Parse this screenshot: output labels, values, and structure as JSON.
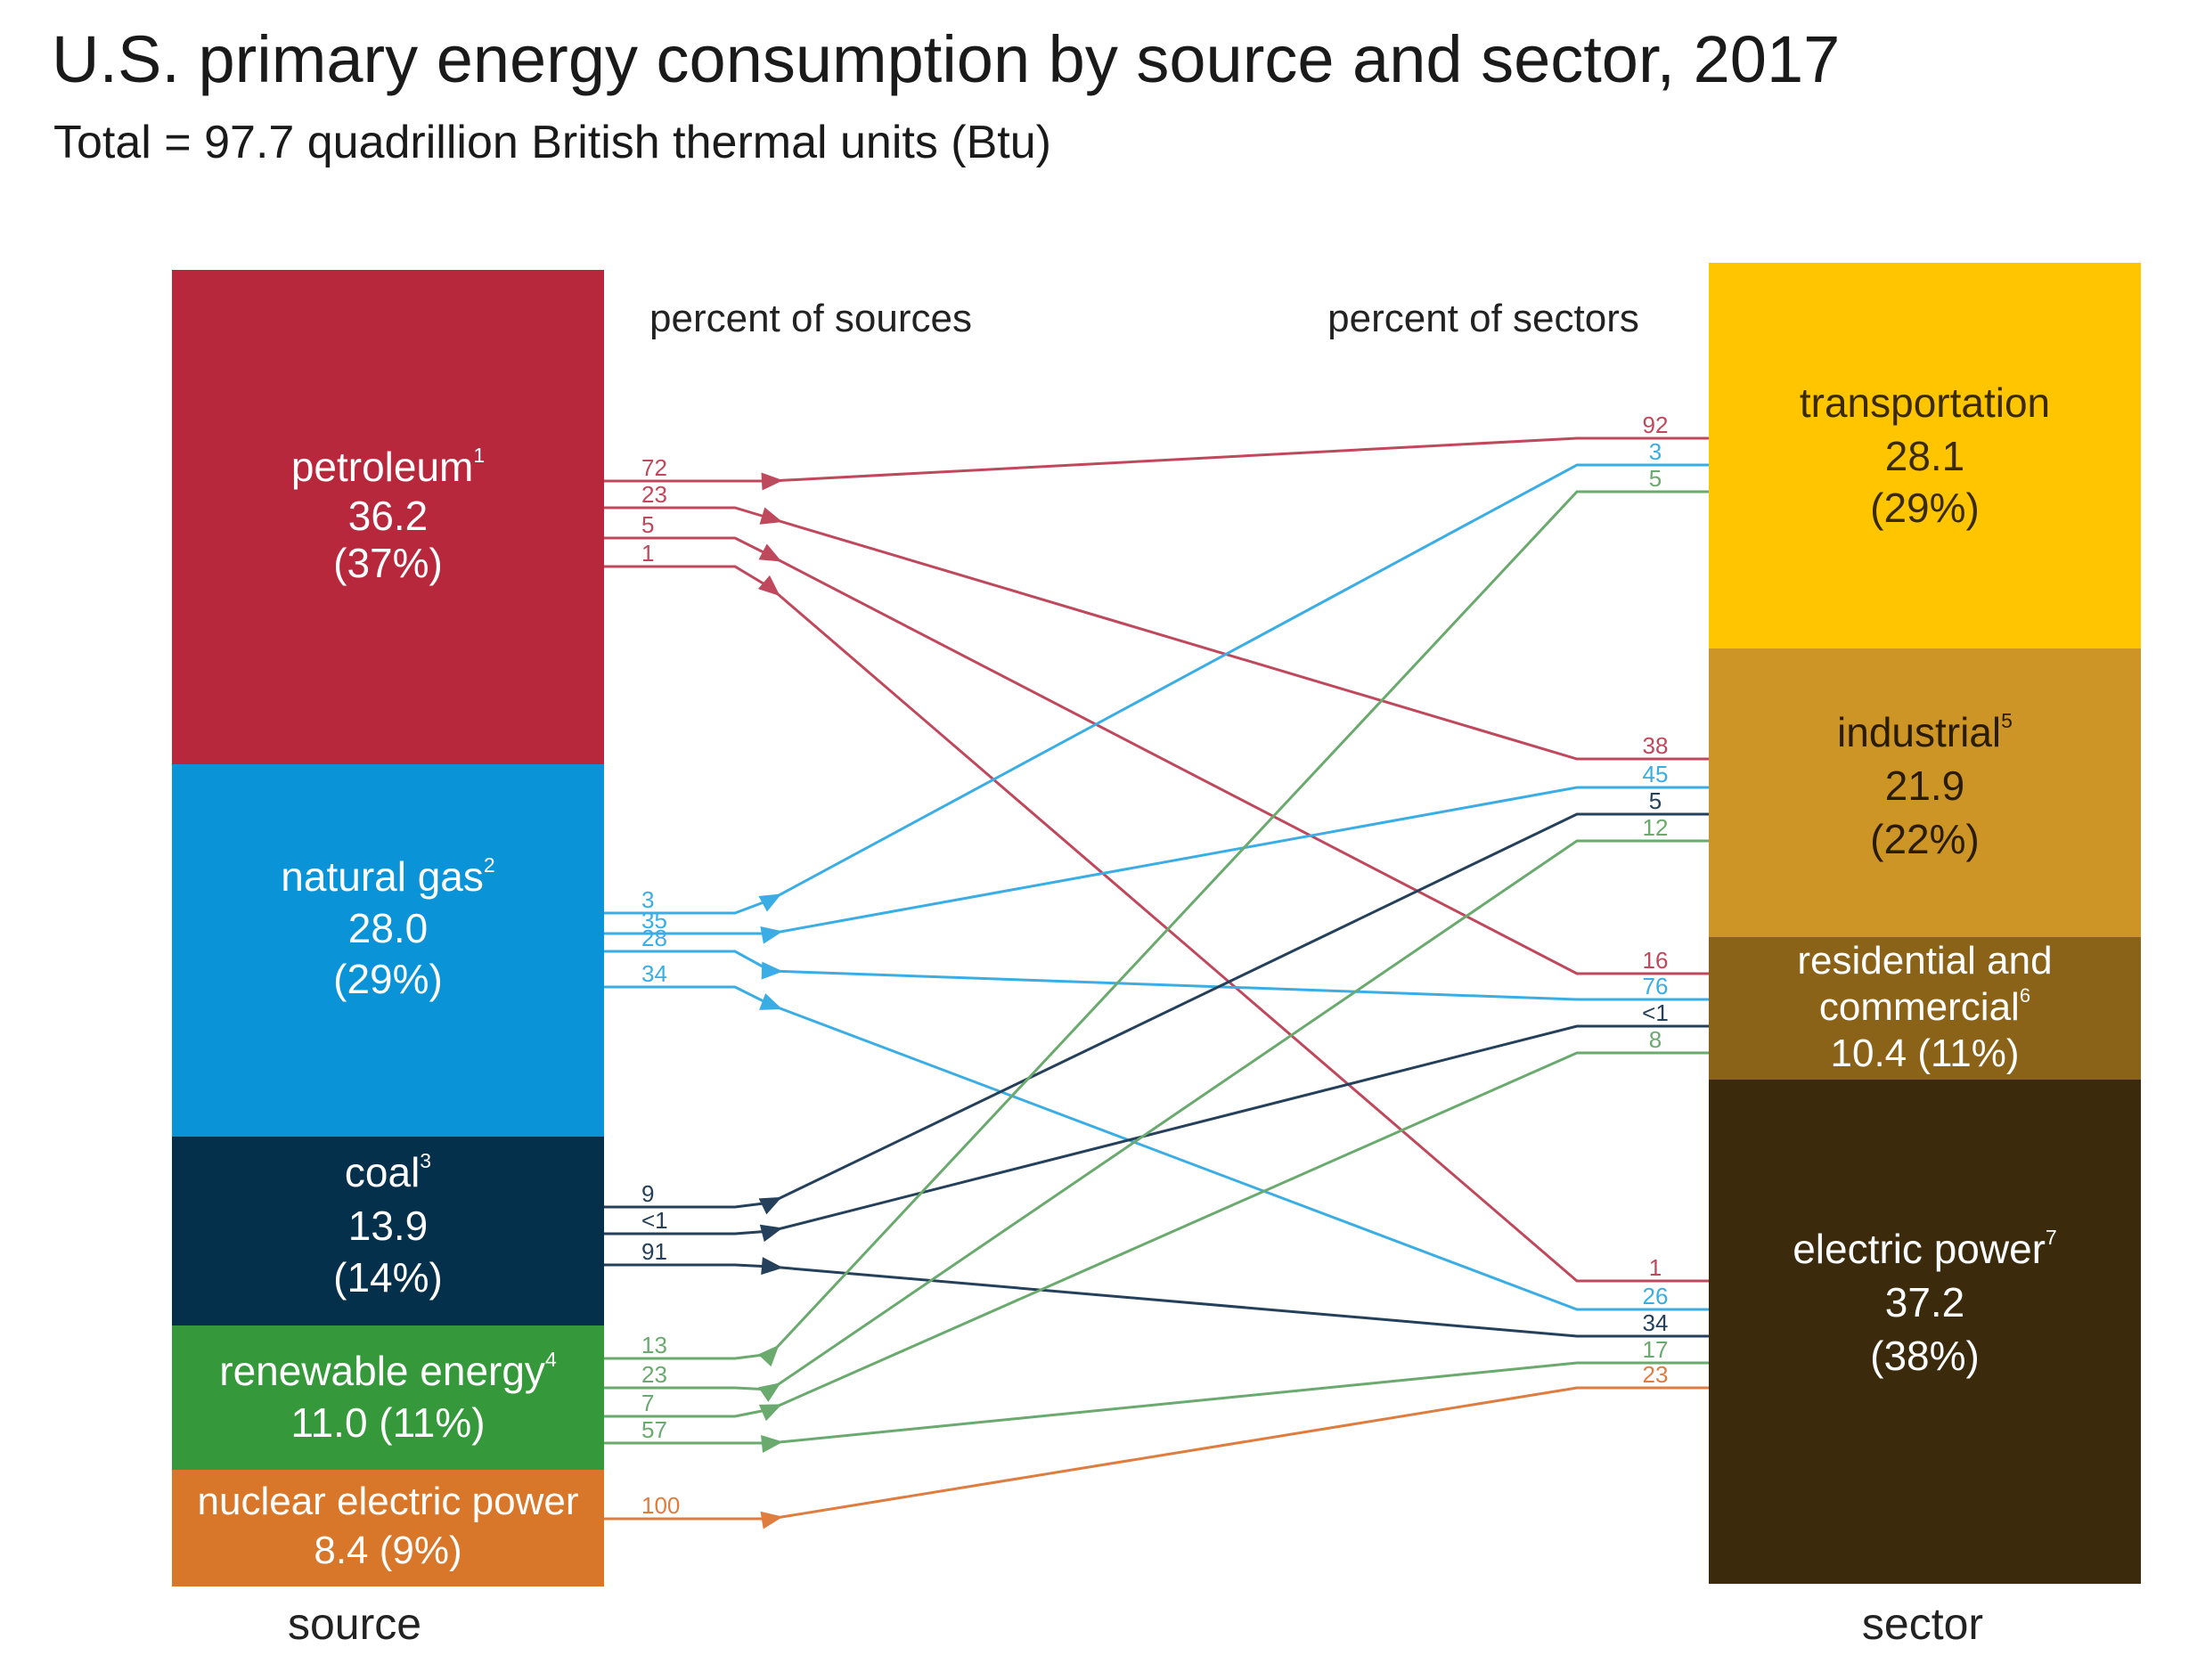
{
  "header": {
    "title": "U.S. primary energy consumption by source and sector, 2017",
    "subtitle": "Total = 97.7 quadrillion British thermal units (Btu)"
  },
  "labels": {
    "percent_of_sources": "percent of sources",
    "percent_of_sectors": "percent of sectors",
    "source": "source",
    "sector": "sector"
  },
  "colors": {
    "petroleum": "#b8283c",
    "natural_gas": "#0a93d6",
    "coal": "#05304c",
    "renewable": "#35983a",
    "nuclear": "#d8762a",
    "transportation": "#ffc600",
    "industrial": "#cd9525",
    "residential": "#8a6218",
    "electric": "#3b2b0c",
    "petroleum_line": "#c0485c",
    "gas_line": "#3aaee4",
    "coal_line": "#24405a",
    "renewable_line": "#6aaa6e",
    "nuclear_line": "#de7d3f"
  },
  "sources": [
    {
      "id": "petroleum",
      "name": "petroleum",
      "sup": "1",
      "value": "36.2",
      "pct": "(37%)",
      "total": 36.2
    },
    {
      "id": "natural_gas",
      "name": "natural gas",
      "sup": "2",
      "value": "28.0",
      "pct": "(29%)",
      "total": 28.0
    },
    {
      "id": "coal",
      "name": "coal",
      "sup": "3",
      "value": "13.9",
      "pct": "(14%)",
      "total": 13.9
    },
    {
      "id": "renewable",
      "name": "renewable energy",
      "sup": "4",
      "value_pct": "11.0 (11%)",
      "total": 11.0
    },
    {
      "id": "nuclear",
      "name": "nuclear electric power",
      "value_pct": "8.4 (9%)",
      "total": 8.4
    }
  ],
  "sectors": [
    {
      "id": "transportation",
      "name": "transportation",
      "value": "28.1",
      "pct": "(29%)",
      "total": 28.1
    },
    {
      "id": "industrial",
      "name": "industrial",
      "sup": "5",
      "value": "21.9",
      "pct": "(22%)",
      "total": 21.9
    },
    {
      "id": "residential",
      "name": "residential and",
      "name2": "commercial",
      "sup": "6",
      "value_pct": "10.4 (11%)",
      "total": 10.4
    },
    {
      "id": "electric",
      "name": "electric power",
      "sup": "7",
      "value": "37.2",
      "pct": "(38%)",
      "total": 37.2
    }
  ],
  "flows": [
    {
      "source": "petroleum",
      "sector": "transportation",
      "source_pct": "72",
      "sector_pct": "92"
    },
    {
      "source": "petroleum",
      "sector": "industrial",
      "source_pct": "23",
      "sector_pct": "38"
    },
    {
      "source": "petroleum",
      "sector": "residential",
      "source_pct": "5",
      "sector_pct": "16"
    },
    {
      "source": "petroleum",
      "sector": "electric",
      "source_pct": "1",
      "sector_pct": "1"
    },
    {
      "source": "natural_gas",
      "sector": "transportation",
      "source_pct": "3",
      "sector_pct": "3"
    },
    {
      "source": "natural_gas",
      "sector": "industrial",
      "source_pct": "35",
      "sector_pct": "45"
    },
    {
      "source": "natural_gas",
      "sector": "residential",
      "source_pct": "28",
      "sector_pct": "76"
    },
    {
      "source": "natural_gas",
      "sector": "electric",
      "source_pct": "34",
      "sector_pct": "26"
    },
    {
      "source": "coal",
      "sector": "industrial",
      "source_pct": "9",
      "sector_pct": "5"
    },
    {
      "source": "coal",
      "sector": "residential",
      "source_pct": "<1",
      "sector_pct": "<1"
    },
    {
      "source": "coal",
      "sector": "electric",
      "source_pct": "91",
      "sector_pct": "34"
    },
    {
      "source": "renewable",
      "sector": "transportation",
      "source_pct": "13",
      "sector_pct": "5"
    },
    {
      "source": "renewable",
      "sector": "industrial",
      "source_pct": "23",
      "sector_pct": "12"
    },
    {
      "source": "renewable",
      "sector": "residential",
      "source_pct": "7",
      "sector_pct": "8"
    },
    {
      "source": "renewable",
      "sector": "electric",
      "source_pct": "57",
      "sector_pct": "17"
    },
    {
      "source": "nuclear",
      "sector": "electric",
      "source_pct": "100",
      "sector_pct": "23"
    }
  ]
}
